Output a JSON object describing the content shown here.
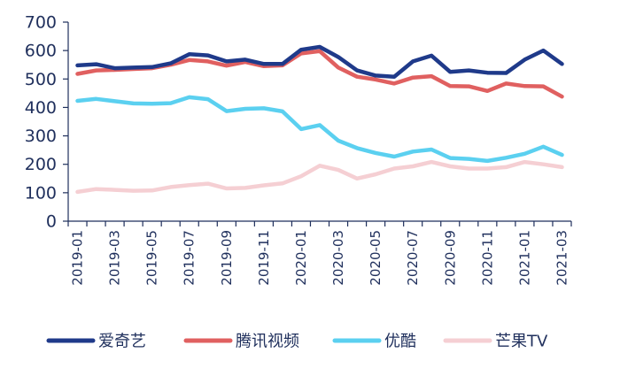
{
  "chart_data": {
    "type": "line",
    "title": "",
    "xlabel": "",
    "ylabel": "",
    "ylim": [
      0,
      700
    ],
    "yticks": [
      0,
      100,
      200,
      300,
      400,
      500,
      600,
      700
    ],
    "grid": false,
    "legend_position": "bottom",
    "x": [
      "2019-01",
      "2019-02",
      "2019-03",
      "2019-04",
      "2019-05",
      "2019-06",
      "2019-07",
      "2019-08",
      "2019-09",
      "2019-10",
      "2019-11",
      "2019-12",
      "2020-01",
      "2020-02",
      "2020-03",
      "2020-04",
      "2020-05",
      "2020-06",
      "2020-07",
      "2020-08",
      "2020-09",
      "2020-10",
      "2020-11",
      "2020-12",
      "2021-01",
      "2021-02",
      "2021-03"
    ],
    "x_tick_labels": [
      "2019-01",
      "2019-03",
      "2019-05",
      "2019-07",
      "2019-09",
      "2019-11",
      "2020-01",
      "2020-03",
      "2020-05",
      "2020-07",
      "2020-09",
      "2020-11",
      "2021-01",
      "2021-03"
    ],
    "series": [
      {
        "name": "爱奇艺",
        "color": "#1f3a8a",
        "values": [
          548,
          552,
          538,
          540,
          542,
          555,
          587,
          583,
          562,
          568,
          553,
          553,
          603,
          613,
          577,
          530,
          512,
          508,
          562,
          582,
          525,
          530,
          522,
          521,
          568,
          600,
          553
        ]
      },
      {
        "name": "腾讯视频",
        "color": "#e06060",
        "values": [
          518,
          530,
          532,
          535,
          538,
          550,
          567,
          562,
          547,
          560,
          545,
          548,
          590,
          598,
          540,
          508,
          498,
          484,
          505,
          510,
          475,
          474,
          458,
          484,
          475,
          474,
          438
        ]
      },
      {
        "name": "优酷",
        "color": "#5bd0f0",
        "values": [
          423,
          430,
          422,
          414,
          413,
          415,
          436,
          429,
          387,
          395,
          397,
          386,
          324,
          338,
          283,
          257,
          240,
          227,
          245,
          252,
          222,
          219,
          212,
          223,
          237,
          262,
          233
        ]
      },
      {
        "name": "芒果TV",
        "color": "#f5cfd3",
        "values": [
          103,
          113,
          110,
          107,
          108,
          120,
          127,
          132,
          115,
          117,
          126,
          133,
          158,
          195,
          180,
          150,
          165,
          185,
          193,
          208,
          193,
          185,
          185,
          190,
          208,
          200,
          190
        ]
      }
    ]
  }
}
